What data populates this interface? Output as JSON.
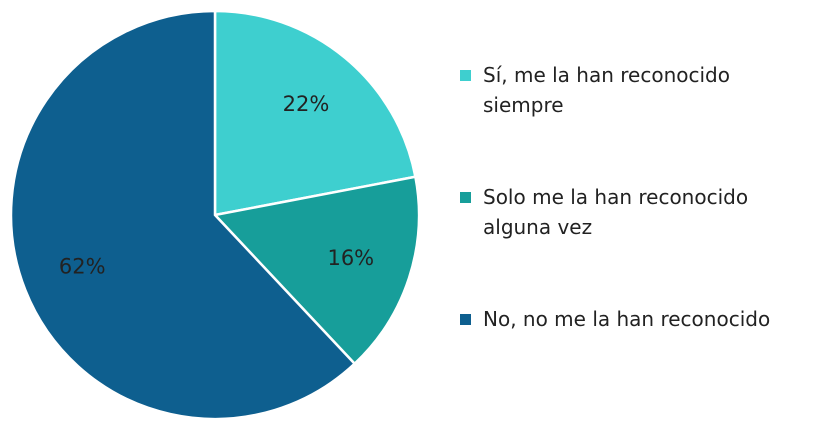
{
  "chart_data": {
    "type": "pie",
    "categories": [
      "Sí, me la han reconocido siempre",
      "Solo me la han reconocido alguna vez",
      "No, no me la han reconocido"
    ],
    "values": [
      22,
      16,
      62
    ],
    "value_labels": [
      "22%",
      "16%",
      "62%"
    ],
    "colors": [
      "#3ecfcf",
      "#179e9a",
      "#0e5f8f"
    ],
    "legend": "right"
  }
}
